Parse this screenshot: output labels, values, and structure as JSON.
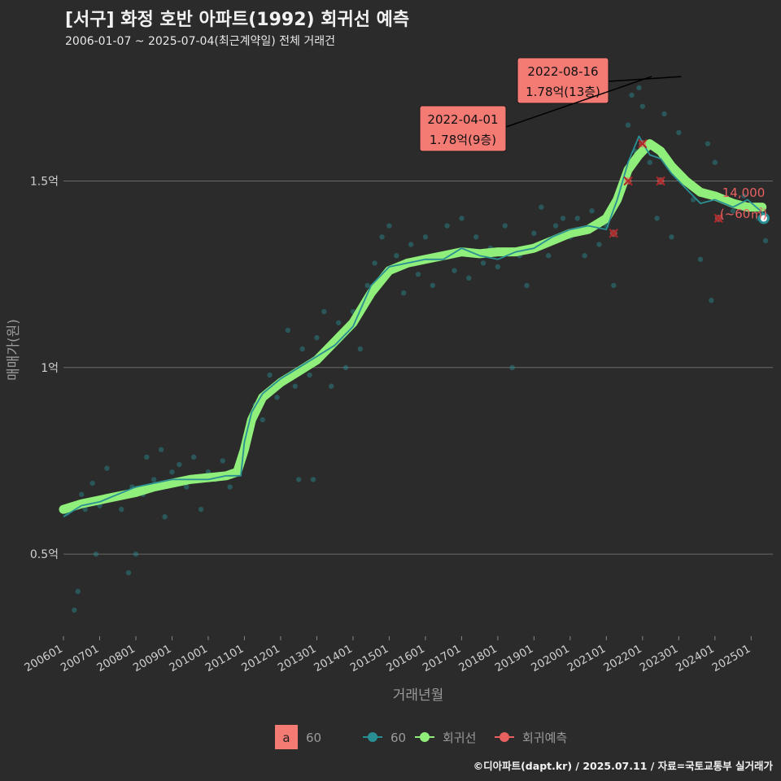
{
  "title": "[서구] 화정 호반 아파트(1992) 회귀선 예측",
  "subtitle": "2006-01-07 ~ 2025-07-04(최근계약일) 전체 거래건",
  "credit": "©디아파트(dapt.kr) / 2025.07.11 / 자료=국토교통부 실거래가",
  "colors": {
    "background": "#2b2b2b",
    "regression": "#90ee7a",
    "series60": "#2a8f94",
    "predict": "#e86060",
    "label_box": "#f47a74"
  },
  "chart_data": {
    "type": "scatter",
    "xlabel": "거래년월",
    "ylabel": "매매가(원)",
    "x_ticks": [
      "200601",
      "200701",
      "200801",
      "200901",
      "201001",
      "201101",
      "201201",
      "201301",
      "201401",
      "201501",
      "201601",
      "201701",
      "201801",
      "201901",
      "202001",
      "202101",
      "202201",
      "202301",
      "202401",
      "202501"
    ],
    "y_ticks": [
      {
        "value": 0.5,
        "label": "0.5억"
      },
      {
        "value": 1.0,
        "label": "1억"
      },
      {
        "value": 1.5,
        "label": "1.5억"
      }
    ],
    "xlim": [
      2006.0,
      2025.6
    ],
    "ylim": [
      0.28,
      1.85
    ],
    "grid": true,
    "legend_position": "bottom",
    "legend": {
      "box_label": "a",
      "box_text": "60",
      "items": [
        {
          "name": "60",
          "color": "#2a8f94"
        },
        {
          "name": "회귀선",
          "color": "#90ee7a"
        },
        {
          "name": "회귀예측",
          "color": "#e86060"
        }
      ]
    },
    "series": [
      {
        "name": "회귀선",
        "points": [
          [
            2006.0,
            0.62
          ],
          [
            2006.5,
            0.635
          ],
          [
            2007.0,
            0.645
          ],
          [
            2007.5,
            0.655
          ],
          [
            2008.0,
            0.665
          ],
          [
            2008.5,
            0.68
          ],
          [
            2009.0,
            0.69
          ],
          [
            2009.5,
            0.7
          ],
          [
            2010.0,
            0.705
          ],
          [
            2010.5,
            0.71
          ],
          [
            2010.8,
            0.72
          ],
          [
            2011.0,
            0.78
          ],
          [
            2011.2,
            0.86
          ],
          [
            2011.5,
            0.92
          ],
          [
            2012.0,
            0.96
          ],
          [
            2012.5,
            0.99
          ],
          [
            2013.0,
            1.02
          ],
          [
            2013.5,
            1.07
          ],
          [
            2014.0,
            1.12
          ],
          [
            2014.5,
            1.2
          ],
          [
            2015.0,
            1.26
          ],
          [
            2015.5,
            1.28
          ],
          [
            2016.0,
            1.29
          ],
          [
            2016.5,
            1.3
          ],
          [
            2017.0,
            1.31
          ],
          [
            2017.5,
            1.305
          ],
          [
            2018.0,
            1.31
          ],
          [
            2018.5,
            1.31
          ],
          [
            2019.0,
            1.32
          ],
          [
            2019.5,
            1.34
          ],
          [
            2020.0,
            1.36
          ],
          [
            2020.5,
            1.37
          ],
          [
            2021.0,
            1.4
          ],
          [
            2021.3,
            1.45
          ],
          [
            2021.6,
            1.53
          ],
          [
            2021.9,
            1.57
          ],
          [
            2022.2,
            1.6
          ],
          [
            2022.5,
            1.58
          ],
          [
            2022.8,
            1.54
          ],
          [
            2023.2,
            1.5
          ],
          [
            2023.6,
            1.47
          ],
          [
            2024.0,
            1.46
          ],
          [
            2024.5,
            1.44
          ],
          [
            2024.9,
            1.43
          ],
          [
            2025.3,
            1.43
          ]
        ]
      },
      {
        "name": "60",
        "points": [
          [
            2006.0,
            0.6
          ],
          [
            2006.5,
            0.63
          ],
          [
            2007.0,
            0.64
          ],
          [
            2007.5,
            0.66
          ],
          [
            2008.0,
            0.68
          ],
          [
            2008.5,
            0.69
          ],
          [
            2009.0,
            0.7
          ],
          [
            2009.5,
            0.7
          ],
          [
            2010.0,
            0.7
          ],
          [
            2010.5,
            0.71
          ],
          [
            2010.9,
            0.71
          ],
          [
            2011.0,
            0.8
          ],
          [
            2011.2,
            0.88
          ],
          [
            2011.5,
            0.93
          ],
          [
            2012.0,
            0.97
          ],
          [
            2012.5,
            1.0
          ],
          [
            2013.0,
            1.03
          ],
          [
            2013.5,
            1.06
          ],
          [
            2014.0,
            1.11
          ],
          [
            2014.5,
            1.22
          ],
          [
            2015.0,
            1.27
          ],
          [
            2015.5,
            1.28
          ],
          [
            2016.0,
            1.29
          ],
          [
            2016.5,
            1.29
          ],
          [
            2017.0,
            1.32
          ],
          [
            2017.5,
            1.3
          ],
          [
            2018.0,
            1.29
          ],
          [
            2018.5,
            1.31
          ],
          [
            2019.0,
            1.32
          ],
          [
            2019.5,
            1.35
          ],
          [
            2020.0,
            1.37
          ],
          [
            2020.5,
            1.38
          ],
          [
            2021.0,
            1.37
          ],
          [
            2021.3,
            1.45
          ],
          [
            2021.6,
            1.55
          ],
          [
            2021.9,
            1.62
          ],
          [
            2022.2,
            1.57
          ],
          [
            2022.5,
            1.56
          ],
          [
            2022.8,
            1.52
          ],
          [
            2023.2,
            1.48
          ],
          [
            2023.6,
            1.44
          ],
          [
            2024.0,
            1.45
          ],
          [
            2024.5,
            1.43
          ],
          [
            2024.9,
            1.45
          ],
          [
            2025.5,
            1.4
          ]
        ]
      }
    ],
    "scatter_points": [
      [
        2006.1,
        0.61
      ],
      [
        2006.2,
        0.63
      ],
      [
        2006.3,
        0.35
      ],
      [
        2006.4,
        0.4
      ],
      [
        2006.5,
        0.66
      ],
      [
        2006.6,
        0.62
      ],
      [
        2006.8,
        0.69
      ],
      [
        2006.9,
        0.5
      ],
      [
        2007.0,
        0.63
      ],
      [
        2007.2,
        0.73
      ],
      [
        2007.4,
        0.65
      ],
      [
        2007.6,
        0.62
      ],
      [
        2007.8,
        0.45
      ],
      [
        2007.9,
        0.68
      ],
      [
        2008.0,
        0.5
      ],
      [
        2008.2,
        0.66
      ],
      [
        2008.3,
        0.76
      ],
      [
        2008.5,
        0.7
      ],
      [
        2008.7,
        0.78
      ],
      [
        2008.8,
        0.6
      ],
      [
        2009.0,
        0.72
      ],
      [
        2009.2,
        0.74
      ],
      [
        2009.4,
        0.68
      ],
      [
        2009.6,
        0.76
      ],
      [
        2009.8,
        0.62
      ],
      [
        2010.0,
        0.72
      ],
      [
        2010.2,
        0.7
      ],
      [
        2010.4,
        0.75
      ],
      [
        2010.6,
        0.68
      ],
      [
        2010.8,
        0.73
      ],
      [
        2011.0,
        0.78
      ],
      [
        2011.1,
        0.82
      ],
      [
        2011.3,
        0.9
      ],
      [
        2011.5,
        0.86
      ],
      [
        2011.7,
        0.98
      ],
      [
        2011.9,
        0.92
      ],
      [
        2012.0,
        0.96
      ],
      [
        2012.2,
        1.1
      ],
      [
        2012.4,
        0.95
      ],
      [
        2012.5,
        0.7
      ],
      [
        2012.6,
        1.05
      ],
      [
        2012.8,
        0.98
      ],
      [
        2012.9,
        0.7
      ],
      [
        2013.0,
        1.08
      ],
      [
        2013.2,
        1.15
      ],
      [
        2013.4,
        0.95
      ],
      [
        2013.6,
        1.12
      ],
      [
        2013.8,
        1.0
      ],
      [
        2014.0,
        1.15
      ],
      [
        2014.2,
        1.05
      ],
      [
        2014.4,
        1.22
      ],
      [
        2014.6,
        1.28
      ],
      [
        2014.8,
        1.35
      ],
      [
        2015.0,
        1.38
      ],
      [
        2015.2,
        1.3
      ],
      [
        2015.4,
        1.2
      ],
      [
        2015.6,
        1.33
      ],
      [
        2015.8,
        1.25
      ],
      [
        2016.0,
        1.35
      ],
      [
        2016.2,
        1.22
      ],
      [
        2016.4,
        1.3
      ],
      [
        2016.6,
        1.38
      ],
      [
        2016.8,
        1.26
      ],
      [
        2017.0,
        1.4
      ],
      [
        2017.2,
        1.24
      ],
      [
        2017.4,
        1.35
      ],
      [
        2017.6,
        1.28
      ],
      [
        2017.8,
        1.32
      ],
      [
        2018.0,
        1.27
      ],
      [
        2018.2,
        1.38
      ],
      [
        2018.4,
        1.0
      ],
      [
        2018.6,
        1.3
      ],
      [
        2018.8,
        1.22
      ],
      [
        2019.0,
        1.36
      ],
      [
        2019.2,
        1.43
      ],
      [
        2019.4,
        1.3
      ],
      [
        2019.6,
        1.38
      ],
      [
        2019.8,
        1.4
      ],
      [
        2020.0,
        1.35
      ],
      [
        2020.2,
        1.4
      ],
      [
        2020.4,
        1.3
      ],
      [
        2020.6,
        1.42
      ],
      [
        2020.8,
        1.33
      ],
      [
        2021.0,
        1.38
      ],
      [
        2021.2,
        1.22
      ],
      [
        2021.4,
        1.48
      ],
      [
        2021.6,
        1.65
      ],
      [
        2021.7,
        1.73
      ],
      [
        2021.8,
        1.58
      ],
      [
        2021.9,
        1.75
      ],
      [
        2022.0,
        1.7
      ],
      [
        2022.2,
        1.55
      ],
      [
        2022.4,
        1.4
      ],
      [
        2022.6,
        1.68
      ],
      [
        2022.8,
        1.35
      ],
      [
        2023.0,
        1.63
      ],
      [
        2023.2,
        1.5
      ],
      [
        2023.4,
        1.45
      ],
      [
        2023.6,
        1.29
      ],
      [
        2023.8,
        1.6
      ],
      [
        2023.9,
        1.18
      ],
      [
        2024.0,
        1.55
      ],
      [
        2024.2,
        1.45
      ],
      [
        2024.5,
        1.42
      ],
      [
        2024.8,
        1.46
      ],
      [
        2025.2,
        1.4
      ],
      [
        2025.4,
        1.34
      ]
    ],
    "predict_points": [
      [
        2021.2,
        1.36
      ],
      [
        2021.6,
        1.5
      ],
      [
        2022.0,
        1.6
      ],
      [
        2022.5,
        1.5
      ],
      [
        2024.1,
        1.4
      ]
    ],
    "last_point": {
      "x": 2025.35,
      "y": 1.4
    },
    "annotations": [
      {
        "date": "2022-08-16",
        "value": "1.78억(13층)",
        "x": 2022.62,
        "y": 1.78
      },
      {
        "date": "2022-04-01",
        "value": "1.78억(9층)",
        "x": 2022.25,
        "y": 1.78
      }
    ],
    "latest_label": {
      "price": "14,000",
      "area": "(~60㎡)"
    }
  }
}
